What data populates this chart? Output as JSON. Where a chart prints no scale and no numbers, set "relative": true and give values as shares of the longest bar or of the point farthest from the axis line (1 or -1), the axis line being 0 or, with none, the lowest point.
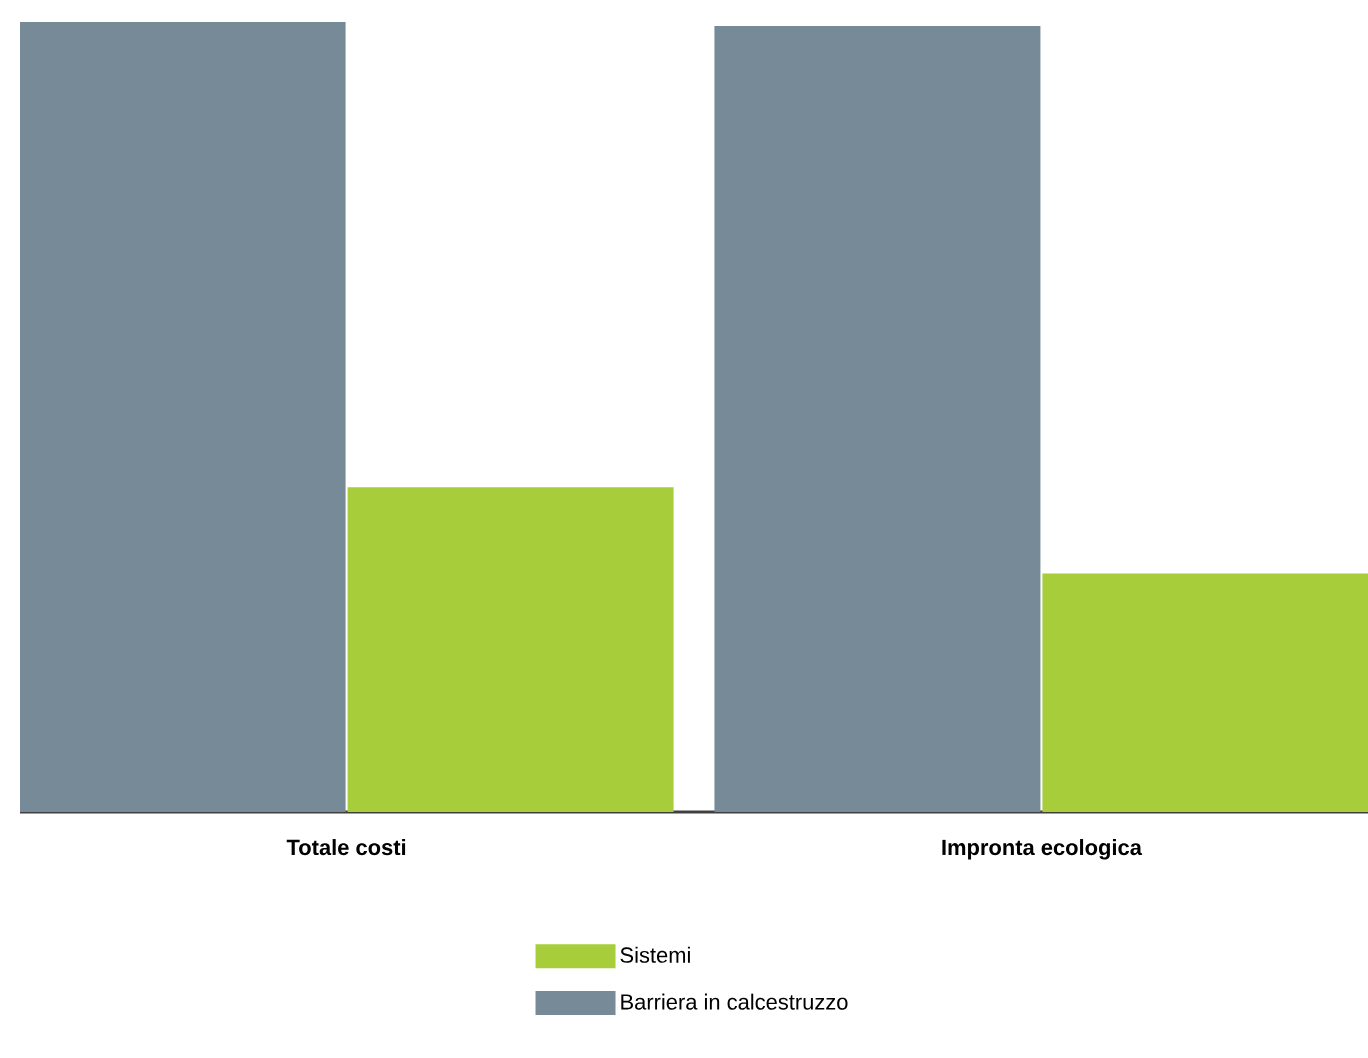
{
  "chart_data": {
    "type": "bar",
    "relative": true,
    "categories": [
      "Totale costi",
      "Impronta ecologica"
    ],
    "series": [
      {
        "name": "Barriera in calcestruzzo",
        "color": "#768b97",
        "values": [
          1,
          0.995
        ]
      },
      {
        "name": "Sistemi",
        "color": "#a8cd3a",
        "values": [
          0.411,
          0.302
        ]
      }
    ],
    "legend": "bottom"
  }
}
